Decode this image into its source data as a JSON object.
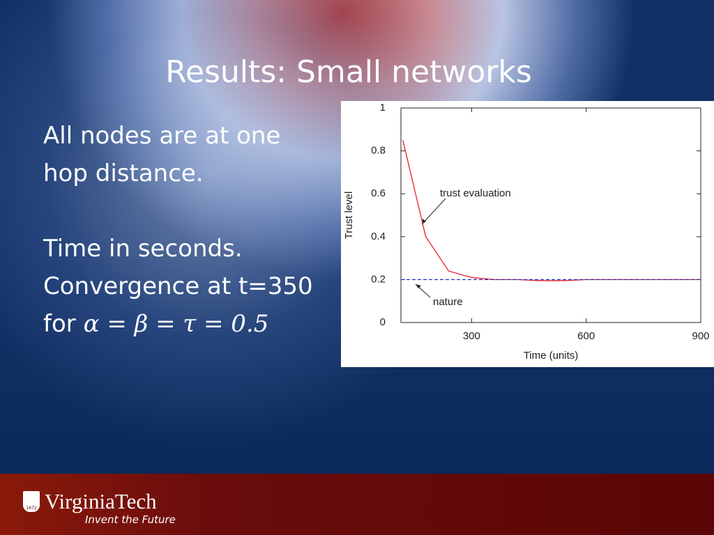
{
  "slide": {
    "title": "Results: Small networks",
    "body": [
      "All nodes are at one",
      "hop distance.",
      "Time in seconds.",
      "Convergence at t=350"
    ],
    "formula": {
      "lead": "for",
      "math": "α = β = τ = 0.5"
    },
    "logo": {
      "year": "1872",
      "name": "VirginiaTech",
      "tagline": "Invent the Future"
    }
  },
  "chart_data": {
    "type": "line",
    "xlabel": "Time (units)",
    "ylabel": "Trust level",
    "xlim": [
      115,
      900
    ],
    "xticks": [
      300,
      600,
      900
    ],
    "ylim": [
      0,
      1
    ],
    "yticks": [
      0,
      0.2,
      0.4,
      0.6,
      0.8,
      1
    ],
    "series": [
      {
        "name": "trust evaluation",
        "color": "#e8202a",
        "dashed": false,
        "x": [
          120,
          180,
          240,
          300,
          360,
          420,
          480,
          540,
          600,
          660,
          720,
          780,
          840,
          900
        ],
        "values": [
          0.85,
          0.4,
          0.24,
          0.21,
          0.2,
          0.2,
          0.195,
          0.195,
          0.2,
          0.2,
          0.2,
          0.2,
          0.2,
          0.2
        ]
      },
      {
        "name": "nature",
        "color": "#2030c0",
        "dashed": true,
        "x": [
          115,
          900
        ],
        "values": [
          0.2,
          0.2
        ]
      }
    ]
  }
}
